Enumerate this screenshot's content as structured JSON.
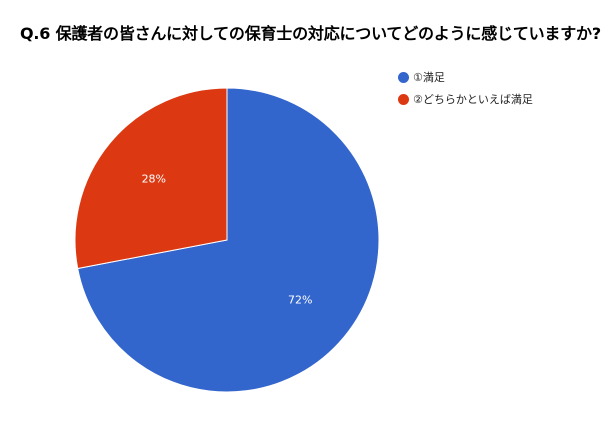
{
  "chart_data": {
    "type": "pie",
    "title": "Q.6 保護者の皆さんに対しての保育士の対応についてどのように感じていますか?",
    "categories": [
      "①満足",
      "②どちらかといえば満足"
    ],
    "values": [
      72,
      28
    ],
    "labels": [
      "72%",
      "28%"
    ],
    "colors": [
      "#3366cc",
      "#dc3912"
    ],
    "legend_position": "right",
    "start_angle": "top, clockwise"
  }
}
